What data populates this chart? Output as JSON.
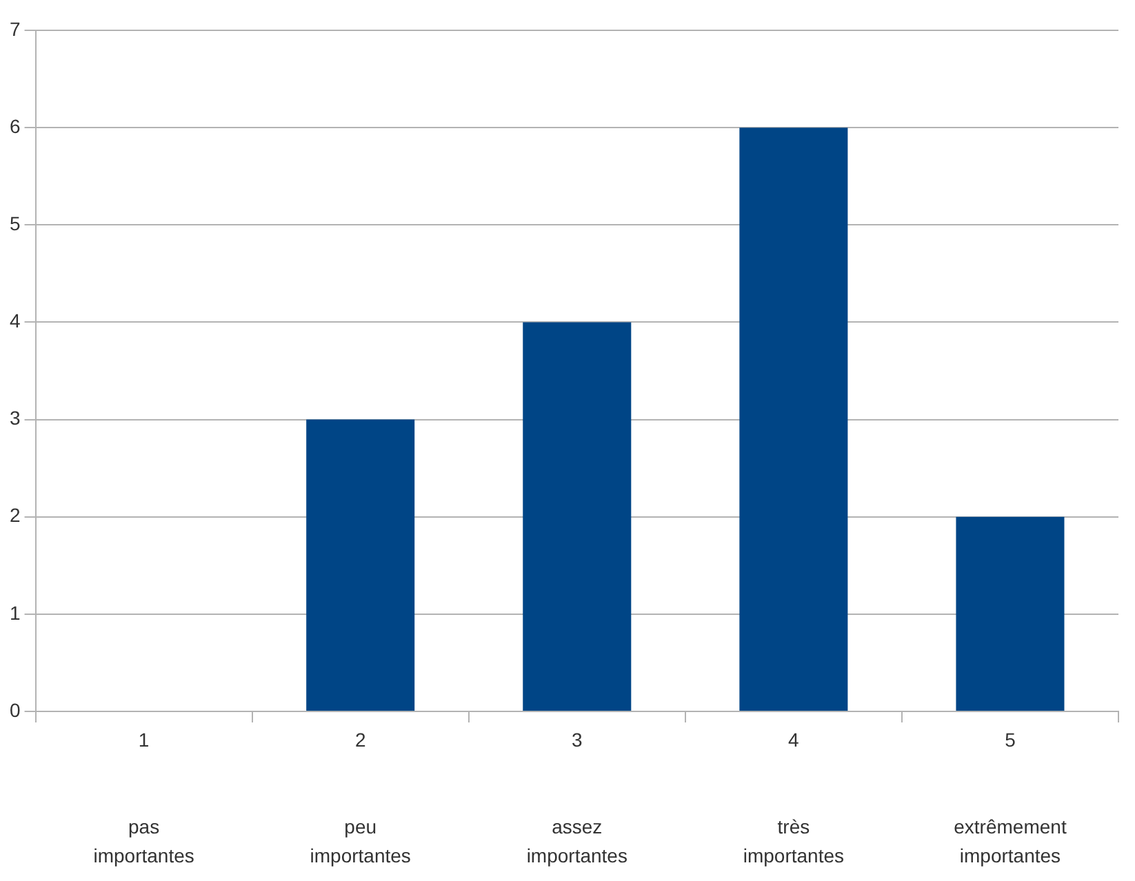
{
  "chart_data": {
    "type": "bar",
    "categories": [
      "1\n\n\npas\nimportantes",
      "2\n\n\npeu\nimportantes",
      "3\n\n\nassez\nimportantes",
      "4\n\n\ntrès\nimportantes",
      "5\n\n\nextrêmement\nimportantes"
    ],
    "values": [
      0,
      3,
      4,
      6,
      2
    ],
    "color": "#004586",
    "ylim": [
      0,
      7
    ],
    "yticks": [
      0,
      1,
      2,
      3,
      4,
      5,
      6,
      7
    ],
    "grid": "y",
    "legend": false
  }
}
